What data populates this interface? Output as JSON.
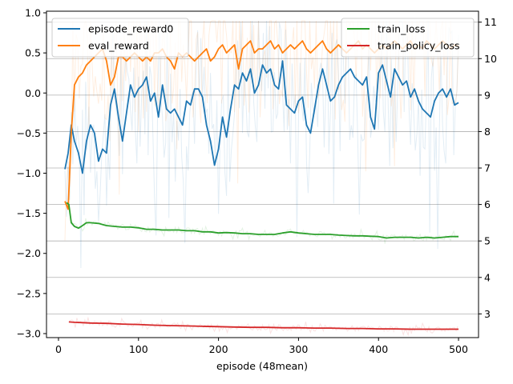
{
  "chart_data": {
    "type": "line",
    "xlabel": "episode (48mean)",
    "xlim": [
      -15,
      525
    ],
    "xticks": [
      0,
      100,
      200,
      300,
      400,
      500
    ],
    "left_axis": {
      "ylim": [
        -3.05,
        1.02
      ],
      "yticks": [
        -3.0,
        -2.5,
        -2.0,
        -1.5,
        -1.0,
        -0.5,
        0.0,
        0.5,
        1.0
      ],
      "tick_labels": [
        "−3.0",
        "−2.5",
        "−2.0",
        "−1.5",
        "−1.0",
        "−0.5",
        "0.0",
        "0.5",
        "1.0"
      ]
    },
    "right_axis": {
      "ylim": [
        2.35,
        11.3
      ],
      "yticks": [
        3,
        4,
        5,
        6,
        7,
        8,
        9,
        10,
        11
      ],
      "grid": true
    },
    "legend_left": [
      "episode_reward0",
      "eval_reward"
    ],
    "legend_right": [
      "train_loss",
      "train_policy_loss"
    ],
    "series": [
      {
        "name": "episode_reward0",
        "axis": "left",
        "color": "#1f77b4",
        "x": [
          8,
          12,
          16,
          20,
          25,
          30,
          35,
          40,
          45,
          50,
          55,
          60,
          65,
          70,
          75,
          80,
          85,
          90,
          95,
          100,
          105,
          110,
          115,
          120,
          125,
          130,
          135,
          140,
          145,
          150,
          155,
          160,
          165,
          170,
          175,
          180,
          185,
          190,
          195,
          200,
          205,
          210,
          215,
          220,
          225,
          230,
          235,
          240,
          245,
          250,
          255,
          260,
          265,
          270,
          275,
          280,
          285,
          290,
          295,
          300,
          305,
          310,
          315,
          320,
          325,
          330,
          335,
          340,
          345,
          350,
          355,
          360,
          365,
          370,
          375,
          380,
          385,
          390,
          395,
          400,
          405,
          410,
          415,
          420,
          425,
          430,
          435,
          440,
          445,
          450,
          455,
          460,
          465,
          470,
          475,
          480,
          485,
          490,
          495,
          500
        ],
        "values": [
          -0.95,
          -0.75,
          -0.4,
          -0.6,
          -0.75,
          -1.0,
          -0.6,
          -0.4,
          -0.5,
          -0.85,
          -0.7,
          -0.75,
          -0.15,
          0.05,
          -0.3,
          -0.6,
          -0.25,
          0.1,
          -0.05,
          0.05,
          0.1,
          0.2,
          -0.1,
          0.0,
          -0.3,
          0.1,
          -0.2,
          -0.25,
          -0.2,
          -0.3,
          -0.4,
          -0.1,
          -0.15,
          0.05,
          0.05,
          -0.05,
          -0.4,
          -0.6,
          -0.9,
          -0.7,
          -0.3,
          -0.55,
          -0.2,
          0.1,
          0.05,
          0.25,
          0.15,
          0.3,
          0.0,
          0.1,
          0.35,
          0.25,
          0.3,
          0.1,
          0.05,
          0.4,
          -0.15,
          -0.2,
          -0.25,
          -0.1,
          -0.05,
          -0.4,
          -0.5,
          -0.2,
          0.1,
          0.3,
          0.1,
          -0.1,
          -0.05,
          0.1,
          0.2,
          0.25,
          0.3,
          0.2,
          0.15,
          0.1,
          0.2,
          -0.3,
          -0.45,
          0.25,
          0.35,
          0.15,
          -0.05,
          0.3,
          0.2,
          0.1,
          0.15,
          -0.05,
          0.05,
          -0.1,
          -0.2,
          -0.25,
          -0.3,
          -0.1,
          0.0,
          0.05,
          -0.05,
          0.05,
          -0.15,
          -0.12
        ]
      },
      {
        "name": "eval_reward",
        "axis": "left",
        "color": "#ff7f0e",
        "x": [
          8,
          12,
          16,
          20,
          25,
          30,
          35,
          40,
          45,
          50,
          55,
          60,
          65,
          70,
          75,
          80,
          85,
          90,
          95,
          100,
          105,
          110,
          115,
          120,
          125,
          130,
          135,
          140,
          145,
          150,
          155,
          160,
          165,
          170,
          175,
          180,
          185,
          190,
          195,
          200,
          205,
          210,
          215,
          220,
          225,
          230,
          235,
          240,
          245,
          250,
          255,
          260,
          265,
          270,
          275,
          280,
          285,
          290,
          295,
          300,
          305,
          310,
          315,
          320,
          325,
          330,
          335,
          340,
          345,
          350,
          355,
          360,
          365,
          370,
          375,
          380,
          385,
          390,
          395,
          400,
          405,
          410,
          415,
          420,
          425,
          430,
          435,
          440,
          445,
          450,
          455,
          460,
          465,
          470,
          475,
          480,
          485,
          490,
          495,
          500
        ],
        "values": [
          -1.35,
          -1.45,
          -0.5,
          0.1,
          0.2,
          0.25,
          0.35,
          0.4,
          0.45,
          0.5,
          0.55,
          0.4,
          0.1,
          0.2,
          0.45,
          0.45,
          0.4,
          0.45,
          0.5,
          0.45,
          0.4,
          0.45,
          0.4,
          0.5,
          0.5,
          0.55,
          0.45,
          0.4,
          0.3,
          0.5,
          0.45,
          0.5,
          0.45,
          0.4,
          0.45,
          0.5,
          0.55,
          0.4,
          0.45,
          0.55,
          0.6,
          0.5,
          0.55,
          0.6,
          0.3,
          0.55,
          0.6,
          0.65,
          0.5,
          0.55,
          0.55,
          0.6,
          0.65,
          0.55,
          0.6,
          0.5,
          0.55,
          0.6,
          0.55,
          0.6,
          0.65,
          0.55,
          0.5,
          0.55,
          0.6,
          0.65,
          0.55,
          0.5,
          0.55,
          0.6,
          0.55,
          0.5,
          0.55,
          0.6,
          0.65,
          0.55,
          0.6,
          0.55,
          0.5,
          0.55,
          0.6,
          0.55,
          0.6,
          0.65,
          0.6,
          0.55,
          0.6,
          0.65,
          0.55,
          0.6,
          0.55,
          0.65,
          0.6,
          0.55,
          0.6,
          0.65,
          0.6,
          0.55,
          0.6,
          0.58
        ]
      },
      {
        "name": "train_loss",
        "axis": "right",
        "color": "#2ca02c",
        "x": [
          10,
          13,
          16,
          20,
          25,
          30,
          35,
          40,
          50,
          60,
          70,
          80,
          90,
          100,
          110,
          120,
          130,
          140,
          150,
          160,
          170,
          180,
          190,
          200,
          210,
          220,
          230,
          240,
          250,
          260,
          270,
          280,
          290,
          300,
          310,
          320,
          330,
          340,
          350,
          360,
          370,
          380,
          390,
          400,
          410,
          420,
          430,
          440,
          450,
          460,
          470,
          480,
          490,
          500
        ],
        "values": [
          6.05,
          6.0,
          5.5,
          5.4,
          5.35,
          5.42,
          5.5,
          5.5,
          5.48,
          5.42,
          5.4,
          5.38,
          5.38,
          5.36,
          5.32,
          5.32,
          5.3,
          5.3,
          5.3,
          5.28,
          5.28,
          5.25,
          5.25,
          5.22,
          5.23,
          5.22,
          5.2,
          5.2,
          5.18,
          5.18,
          5.18,
          5.22,
          5.25,
          5.22,
          5.2,
          5.18,
          5.18,
          5.18,
          5.16,
          5.15,
          5.14,
          5.14,
          5.13,
          5.12,
          5.08,
          5.1,
          5.1,
          5.1,
          5.08,
          5.1,
          5.08,
          5.1,
          5.12,
          5.12
        ]
      },
      {
        "name": "train_policy_loss",
        "axis": "right",
        "color": "#d62728",
        "x": [
          13,
          20,
          30,
          40,
          60,
          80,
          100,
          120,
          140,
          160,
          180,
          200,
          220,
          240,
          260,
          280,
          300,
          320,
          340,
          360,
          380,
          400,
          420,
          440,
          460,
          480,
          500
        ],
        "values": [
          2.78,
          2.77,
          2.76,
          2.75,
          2.74,
          2.72,
          2.71,
          2.69,
          2.68,
          2.67,
          2.66,
          2.65,
          2.64,
          2.63,
          2.63,
          2.62,
          2.62,
          2.61,
          2.61,
          2.6,
          2.6,
          2.59,
          2.59,
          2.58,
          2.58,
          2.58,
          2.58
        ]
      }
    ]
  }
}
